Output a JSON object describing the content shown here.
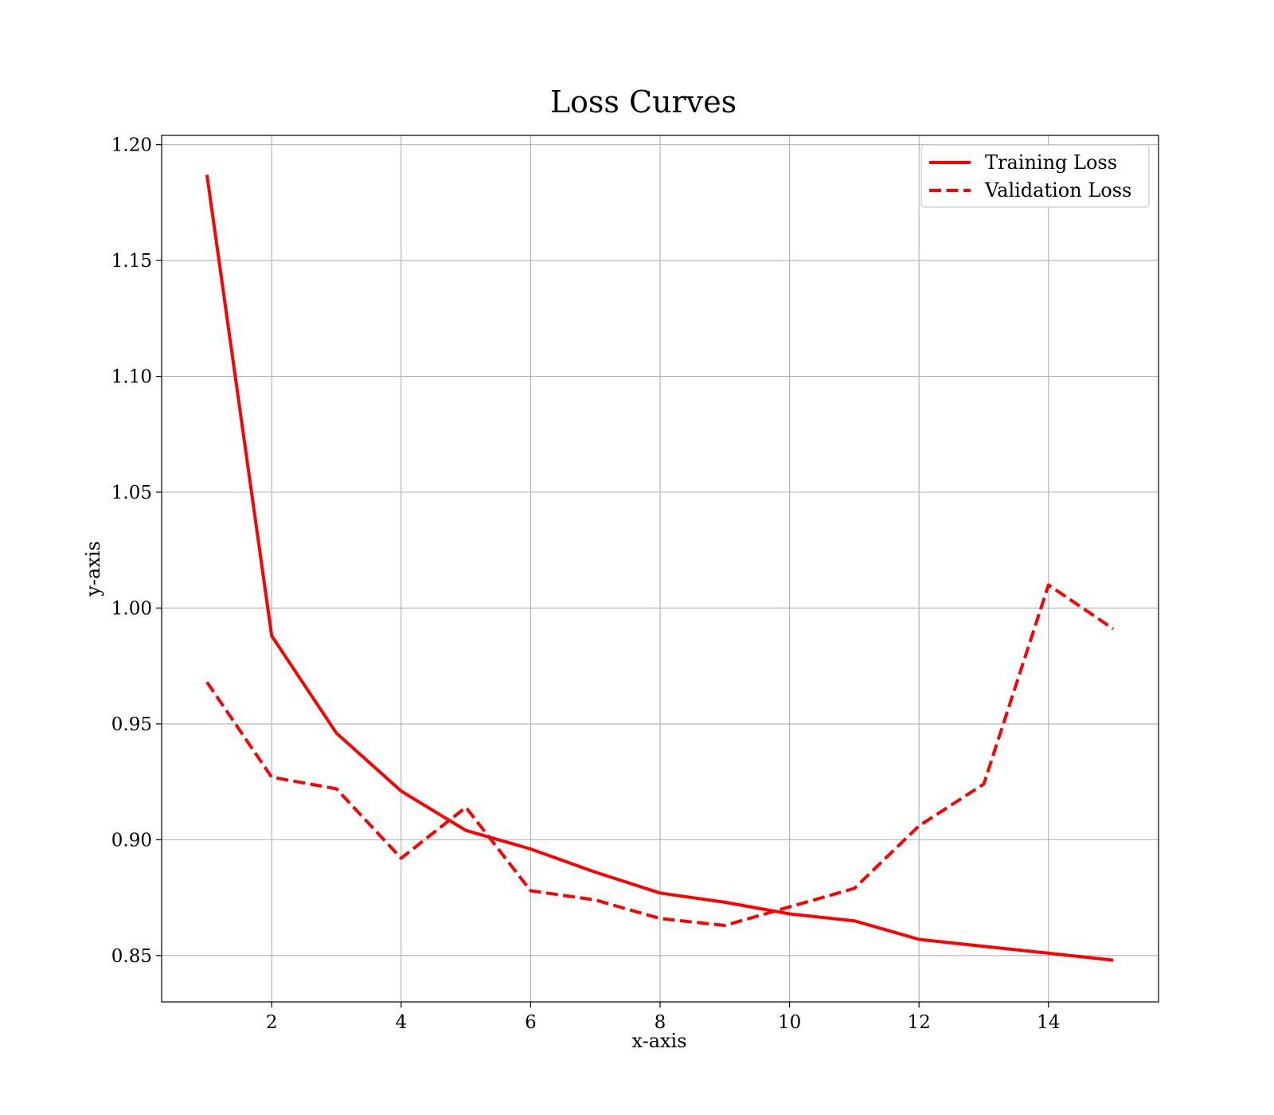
{
  "chart_data": {
    "type": "line",
    "title": "Loss Curves",
    "xlabel": "x-axis",
    "ylabel": "y-axis",
    "x": [
      1,
      2,
      3,
      4,
      5,
      6,
      7,
      8,
      9,
      10,
      11,
      12,
      13,
      14,
      15
    ],
    "series": [
      {
        "name": "Training Loss",
        "style": "solid",
        "color": "#ff0000",
        "values": [
          1.187,
          0.988,
          0.946,
          0.921,
          0.904,
          0.896,
          0.886,
          0.877,
          0.873,
          0.868,
          0.865,
          0.857,
          0.854,
          0.851,
          0.848
        ]
      },
      {
        "name": "Validation Loss",
        "style": "dashed",
        "color": "#ff0000",
        "values": [
          0.968,
          0.927,
          0.922,
          0.892,
          0.914,
          0.878,
          0.874,
          0.866,
          0.863,
          0.871,
          0.879,
          0.906,
          0.924,
          1.01,
          0.991
        ]
      }
    ],
    "xlim": [
      0.3,
      15.7
    ],
    "ylim": [
      0.83,
      1.204
    ],
    "x_ticks": [
      2,
      4,
      6,
      8,
      10,
      12,
      14
    ],
    "x_tick_labels": [
      "2",
      "4",
      "6",
      "8",
      "10",
      "12",
      "14"
    ],
    "y_ticks": [
      0.85,
      0.9,
      0.95,
      1.0,
      1.05,
      1.1,
      1.15,
      1.2
    ],
    "y_tick_labels": [
      "0.85",
      "0.90",
      "0.95",
      "1.00",
      "1.05",
      "1.10",
      "1.15",
      "1.20"
    ],
    "grid": true,
    "legend_position": "top-right"
  }
}
